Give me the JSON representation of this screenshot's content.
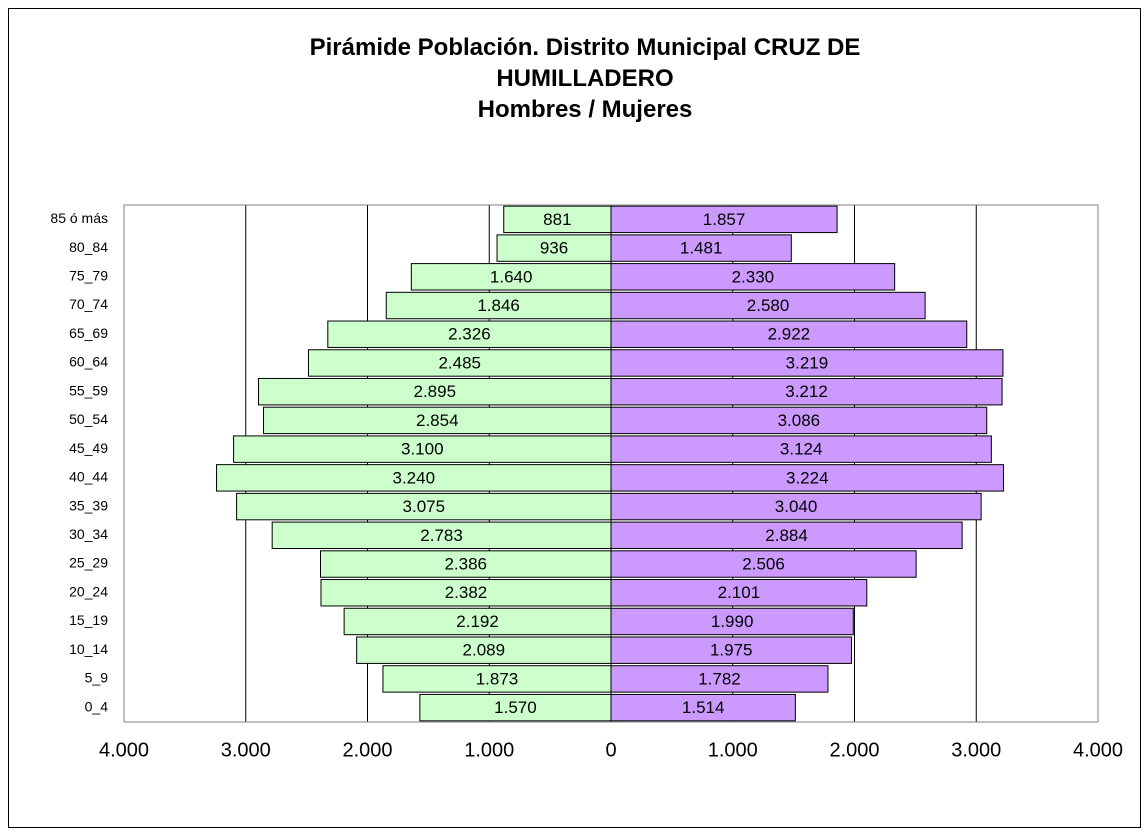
{
  "chart_data": {
    "type": "pyramid",
    "title": "Pirámide Población. Distrito Municipal CRUZ DE HUMILLADERO",
    "subtitle": "Hombres / Mujeres",
    "categories": [
      "0_4",
      "5_9",
      "10_14",
      "15_19",
      "20_24",
      "25_29",
      "30_34",
      "35_39",
      "40_44",
      "45_49",
      "50_54",
      "55_59",
      "60_64",
      "65_69",
      "70_74",
      "75_79",
      "80_84",
      "85 ó más"
    ],
    "series": [
      {
        "name": "Hombres",
        "color": "#ccffcc",
        "values": [
          -1570,
          -1873,
          -2089,
          -2192,
          -2382,
          -2386,
          -2783,
          -3075,
          -3240,
          -3100,
          -2854,
          -2895,
          -2485,
          -2326,
          -1846,
          -1640,
          -936,
          -881
        ],
        "value_labels": [
          "1.570",
          "1.873",
          "2.089",
          "2.192",
          "2.382",
          "2.386",
          "2.783",
          "3.075",
          "3.240",
          "3.100",
          "2.854",
          "2.895",
          "2.485",
          "2.326",
          "1.846",
          "1.640",
          "936",
          "881"
        ]
      },
      {
        "name": "Mujeres",
        "color": "#cc99ff",
        "values": [
          1514,
          1782,
          1975,
          1990,
          2101,
          2506,
          2884,
          3040,
          3224,
          3124,
          3086,
          3212,
          3219,
          2922,
          2580,
          2330,
          1481,
          1857
        ],
        "value_labels": [
          "1.514",
          "1.782",
          "1.975",
          "1.990",
          "2.101",
          "2.506",
          "2.884",
          "3.040",
          "3.224",
          "3.124",
          "3.086",
          "3.212",
          "3.219",
          "2.922",
          "2.580",
          "2.330",
          "1.481",
          "1.857"
        ]
      }
    ],
    "xlim": [
      -4000,
      4000
    ],
    "xticks": [
      {
        "value": -4000,
        "label": "4.000"
      },
      {
        "value": -3000,
        "label": "3.000"
      },
      {
        "value": -2000,
        "label": "2.000"
      },
      {
        "value": -1000,
        "label": "1.000"
      },
      0,
      {
        "value": 1000,
        "label": "1.000"
      },
      {
        "value": 2000,
        "label": "2.000"
      },
      {
        "value": 3000,
        "label": "3.000"
      },
      {
        "value": 4000,
        "label": "4.000"
      }
    ],
    "grid": true
  }
}
